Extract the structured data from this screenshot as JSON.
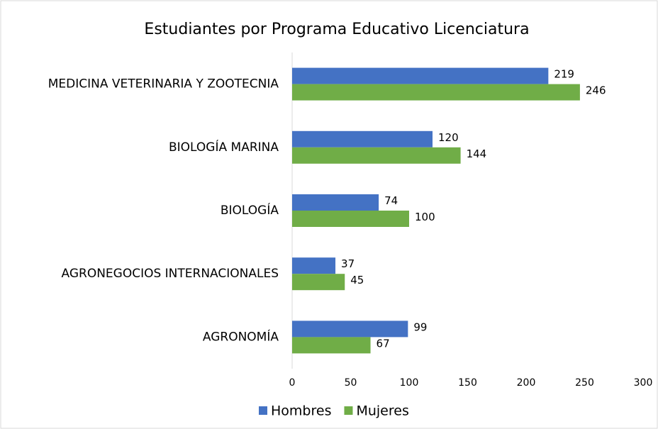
{
  "chart_data": {
    "type": "bar",
    "orientation": "horizontal",
    "title": "Estudiantes por Programa Educativo Licenciatura",
    "categories": [
      "MEDICINA VETERINARIA Y ZOOTECNIA",
      "BIOLOGÍA MARINA",
      "BIOLOGÍA",
      "AGRONEGOCIOS INTERNACIONALES",
      "AGRONOMÍA"
    ],
    "series": [
      {
        "name": "Hombres",
        "color": "#4472c4",
        "values": [
          219,
          120,
          74,
          37,
          99
        ]
      },
      {
        "name": "Mujeres",
        "color": "#70ad47",
        "values": [
          246,
          144,
          100,
          45,
          67
        ]
      }
    ],
    "xlim": [
      0,
      300
    ],
    "xticks": [
      0,
      50,
      100,
      150,
      200,
      250,
      300
    ],
    "grid": false,
    "legend": "bottom"
  }
}
